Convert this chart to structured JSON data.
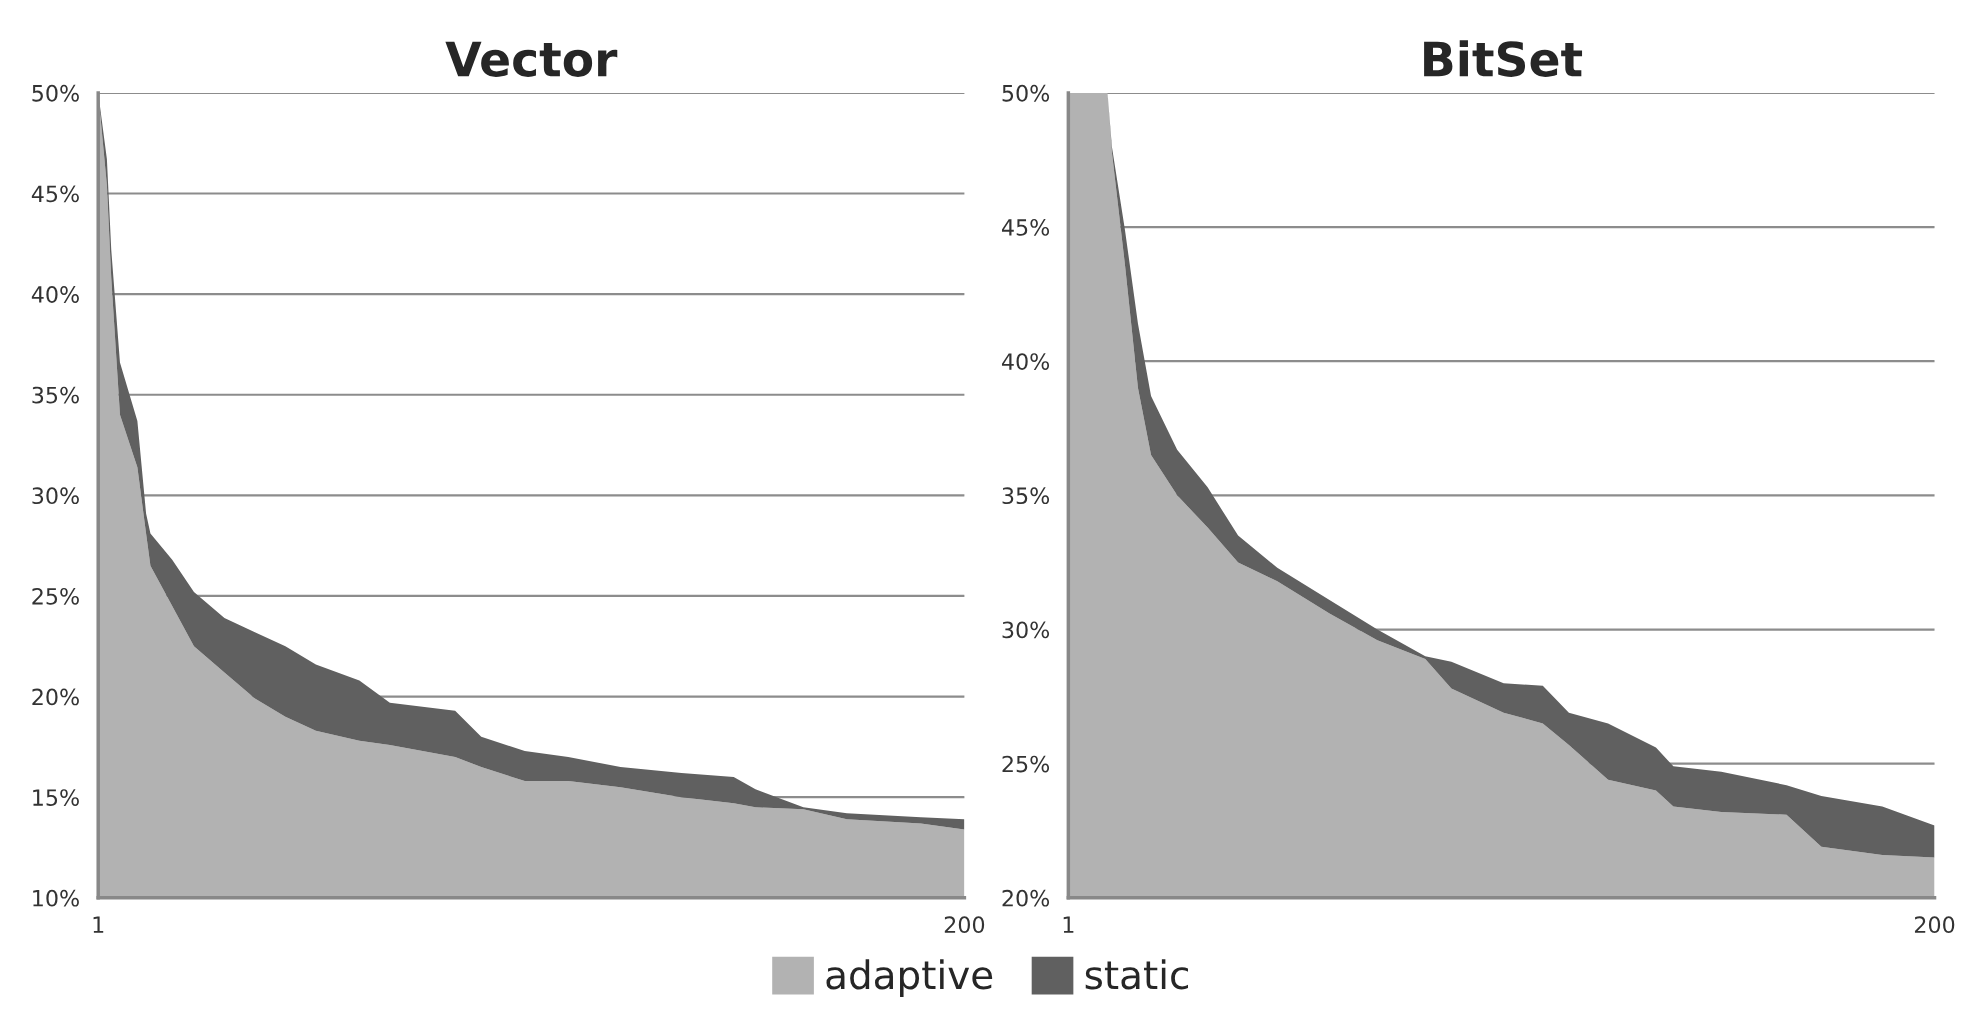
{
  "chart_data": [
    {
      "type": "area",
      "title": "Vector",
      "grid": "y",
      "legend": "bottom",
      "x": [
        1,
        3,
        4,
        6,
        10,
        12,
        13,
        18,
        23,
        30,
        37,
        44,
        51,
        61,
        68,
        83,
        89,
        99,
        109,
        121,
        135,
        147,
        152,
        163,
        173,
        190,
        200
      ],
      "series": [
        {
          "name": "adaptive",
          "color": "#b2b2b2",
          "values": [
            50,
            45.4,
            40.8,
            34.0,
            31.4,
            28.1,
            26.5,
            24.5,
            22.5,
            21.2,
            19.9,
            19.0,
            18.3,
            17.8,
            17.6,
            17.0,
            16.5,
            15.8,
            15.8,
            15.5,
            15.0,
            14.7,
            14.5,
            14.4,
            13.9,
            13.7,
            13.4
          ]
        },
        {
          "name": "static",
          "color": "#606060",
          "values": [
            50,
            46.7,
            42.2,
            36.6,
            33.7,
            29.1,
            28.1,
            26.8,
            25.2,
            23.9,
            23.2,
            22.5,
            21.6,
            20.8,
            19.7,
            19.3,
            18.0,
            17.3,
            17.0,
            16.5,
            16.2,
            16.0,
            15.4,
            14.5,
            14.2,
            14.0,
            13.9
          ]
        }
      ],
      "xlim": [
        1,
        200
      ],
      "xticks": [
        1,
        200
      ],
      "ylim": [
        10,
        50
      ],
      "yticks": [
        {
          "value": 10,
          "label": "10%"
        },
        {
          "value": 15,
          "label": "15%"
        },
        {
          "value": 20,
          "label": "20%"
        },
        {
          "value": 25,
          "label": "25%"
        },
        {
          "value": 30,
          "label": "30%"
        },
        {
          "value": 35,
          "label": "35%"
        },
        {
          "value": 40,
          "label": "40%"
        },
        {
          "value": 45,
          "label": "45%"
        },
        {
          "value": 50,
          "label": "50%"
        }
      ]
    },
    {
      "type": "area",
      "title": "BitSet",
      "grid": "y",
      "x": [
        1,
        10,
        11,
        14,
        17,
        20,
        26,
        33,
        40,
        49,
        61,
        72,
        83,
        89,
        101,
        110,
        116,
        125,
        136,
        140,
        151,
        166,
        174,
        188,
        200
      ],
      "series": [
        {
          "color": "#b2b2b2",
          "values": [
            50,
            50,
            47.8,
            43.6,
            39.0,
            36.5,
            35.0,
            33.8,
            32.5,
            31.8,
            30.6,
            29.6,
            28.9,
            27.8,
            26.9,
            26.5,
            25.7,
            24.4,
            24.0,
            23.4,
            23.2,
            23.1,
            21.9,
            21.6,
            21.5
          ]
        },
        {
          "color": "#606060",
          "values": [
            50,
            50,
            48.0,
            44.9,
            41.4,
            38.7,
            36.7,
            35.3,
            33.5,
            32.3,
            31.1,
            30.0,
            29.0,
            28.8,
            28.0,
            27.9,
            26.9,
            26.5,
            25.6,
            24.9,
            24.7,
            24.2,
            23.8,
            23.4,
            22.7
          ]
        }
      ],
      "xlim": [
        1,
        200
      ],
      "xticks": [
        1,
        200
      ],
      "ylim": [
        20,
        50
      ],
      "yticks": [
        {
          "value": 20,
          "label": "20%"
        },
        {
          "value": 25,
          "label": "25%"
        },
        {
          "value": 30,
          "label": "30%"
        },
        {
          "value": 35,
          "label": "35%"
        },
        {
          "value": 40,
          "label": "40%"
        },
        {
          "value": 45,
          "label": "45%"
        },
        {
          "value": 50,
          "label": "50%"
        }
      ]
    }
  ]
}
